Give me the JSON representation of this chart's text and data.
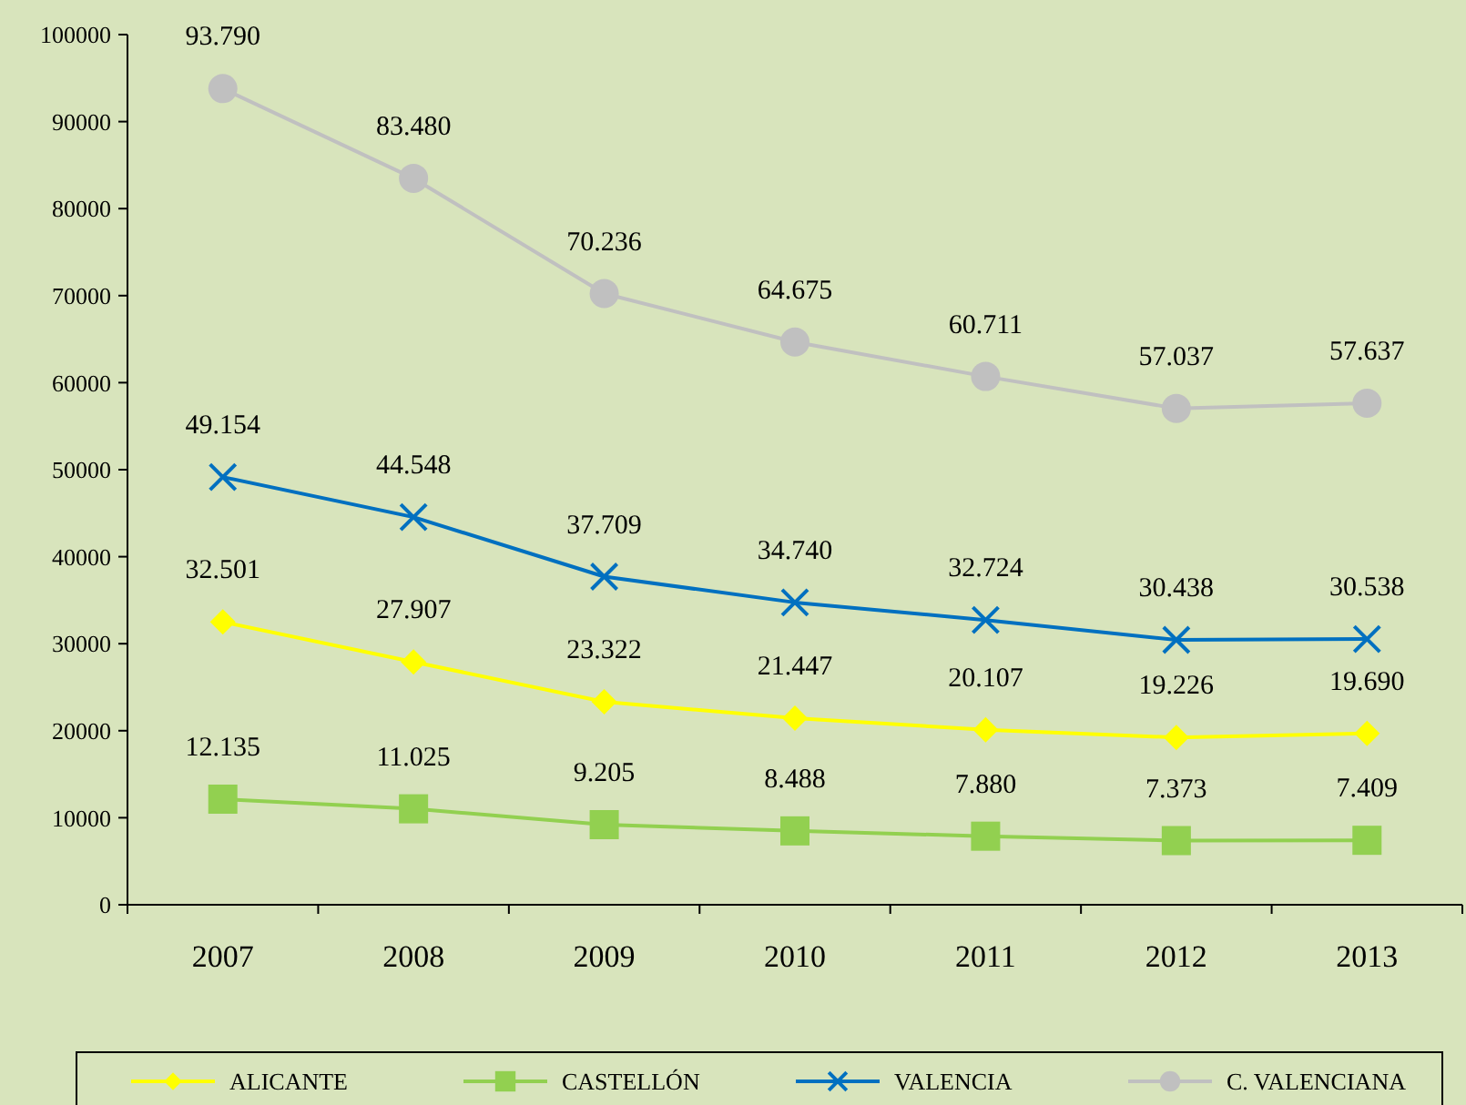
{
  "chart_data": {
    "type": "line",
    "categories": [
      "2007",
      "2008",
      "2009",
      "2010",
      "2011",
      "2012",
      "2013"
    ],
    "ylim": [
      0,
      100000
    ],
    "yticks": [
      0,
      10000,
      20000,
      30000,
      40000,
      50000,
      60000,
      70000,
      80000,
      90000,
      100000
    ],
    "grid": false,
    "legend": "bottom",
    "series": [
      {
        "name": "ALICANTE",
        "color": "#ffff00",
        "marker": "diamond",
        "values": [
          32501,
          27907,
          23322,
          21447,
          20107,
          19226,
          19690
        ],
        "value_labels": [
          "32.501",
          "27.907",
          "23.322",
          "21.447",
          "20.107",
          "19.226",
          "19.690"
        ]
      },
      {
        "name": "CASTELLÓN",
        "color": "#92d050",
        "marker": "square",
        "values": [
          12135,
          11025,
          9205,
          8488,
          7880,
          7373,
          7409
        ],
        "value_labels": [
          "12.135",
          "11.025",
          "9.205",
          "8.488",
          "7.880",
          "7.373",
          "7.409"
        ]
      },
      {
        "name": "VALENCIA",
        "color": "#0070c0",
        "marker": "cross",
        "values": [
          49154,
          44548,
          37709,
          34740,
          32724,
          30438,
          30538
        ],
        "value_labels": [
          "49.154",
          "44.548",
          "37.709",
          "34.740",
          "32.724",
          "30.438",
          "30.538"
        ]
      },
      {
        "name": "C. VALENCIANA",
        "color": "#c0c0c0",
        "marker": "circle",
        "values": [
          93790,
          83480,
          70236,
          64675,
          60711,
          57037,
          57637
        ],
        "value_labels": [
          "93.790",
          "83.480",
          "70.236",
          "64.675",
          "60.711",
          "57.037",
          "57.637"
        ]
      }
    ]
  }
}
